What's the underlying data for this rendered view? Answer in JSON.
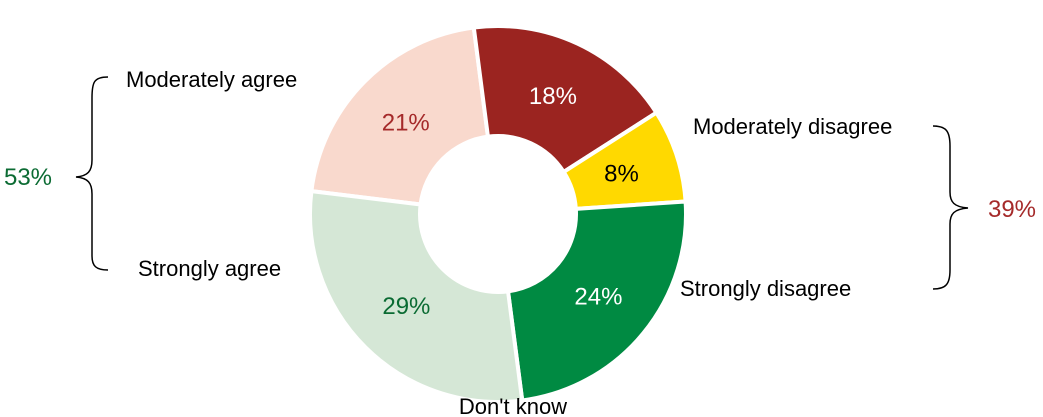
{
  "chart_data": {
    "type": "pie",
    "donut": true,
    "legend": "none",
    "slices": [
      {
        "label": "Moderately disagree",
        "value": 21,
        "value_label": "21%",
        "color": "#f9d9cd",
        "label_color": "#a52a2a"
      },
      {
        "label": "Strongly disagree",
        "value": 18,
        "value_label": "18%",
        "color": "#9b2420",
        "label_color": "#ffffff"
      },
      {
        "label": "Don't know",
        "value": 8,
        "value_label": "8%",
        "color": "#ffd900",
        "label_color": "#000000"
      },
      {
        "label": "Strongly agree",
        "value": 24,
        "value_label": "24%",
        "color": "#008a42",
        "label_color": "#ffffff"
      },
      {
        "label": "Moderately agree",
        "value": 29,
        "value_label": "29%",
        "color": "#d5e7d6",
        "label_color": "#0b6b33"
      }
    ],
    "groups": [
      {
        "value_label": "53%",
        "color": "#0b6b33",
        "members": [
          "Moderately agree",
          "Strongly agree"
        ]
      },
      {
        "value_label": "39%",
        "color": "#a52a2a",
        "members": [
          "Moderately disagree",
          "Strongly disagree"
        ]
      }
    ]
  }
}
